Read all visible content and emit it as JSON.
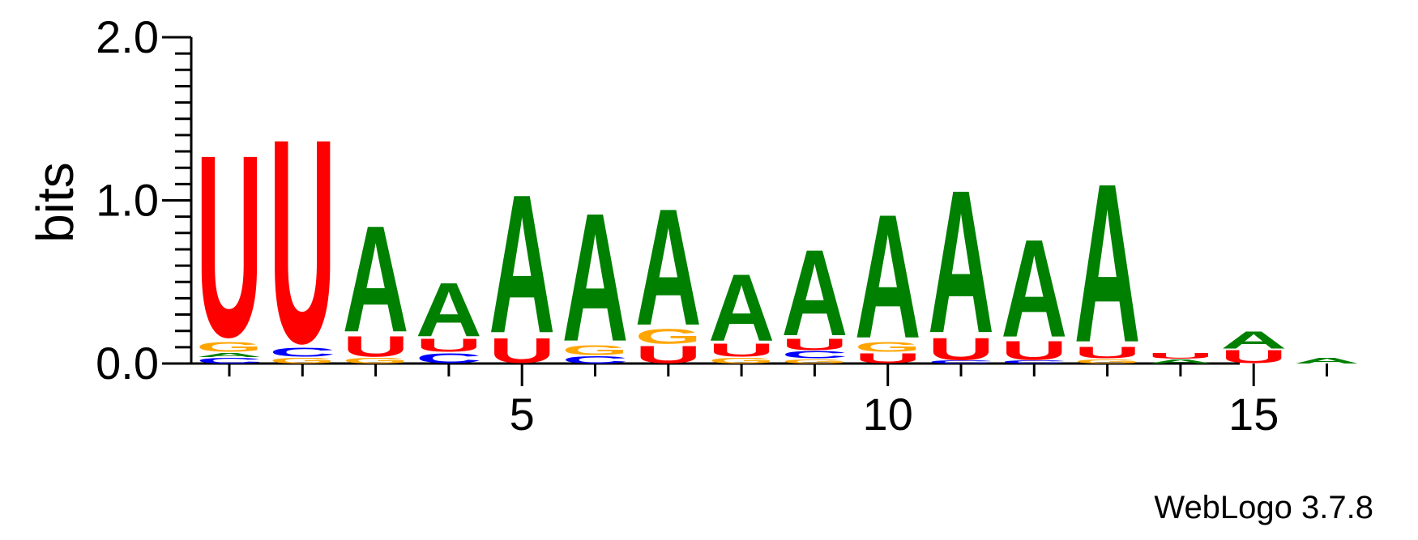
{
  "chart_data": {
    "type": "sequence-logo",
    "ylabel": "bits",
    "ylim": [
      0,
      2
    ],
    "y_ticks": [
      {
        "value": 0,
        "label": "0.0"
      },
      {
        "value": 1,
        "label": "1.0"
      },
      {
        "value": 2,
        "label": "2.0"
      }
    ],
    "x_range": [
      1,
      16
    ],
    "x_ticks": [
      {
        "value": 5,
        "label": "5"
      },
      {
        "value": 10,
        "label": "10"
      },
      {
        "value": 15,
        "label": "15"
      }
    ],
    "colors": {
      "A": "#008000",
      "C": "#0000ff",
      "G": "#ffa500",
      "U": "#ff0000"
    },
    "positions": [
      {
        "pos": 1,
        "stack": [
          [
            "C",
            0.04
          ],
          [
            "A",
            0.03
          ],
          [
            "G",
            0.07
          ],
          [
            "U",
            1.25
          ]
        ]
      },
      {
        "pos": 2,
        "stack": [
          [
            "G",
            0.04
          ],
          [
            "C",
            0.06
          ],
          [
            "U",
            1.4
          ]
        ]
      },
      {
        "pos": 3,
        "stack": [
          [
            "G",
            0.04
          ],
          [
            "U",
            0.14
          ],
          [
            "A",
            0.73
          ]
        ]
      },
      {
        "pos": 4,
        "stack": [
          [
            "C",
            0.07
          ],
          [
            "U",
            0.09
          ],
          [
            "A",
            0.37
          ]
        ]
      },
      {
        "pos": 5,
        "stack": [
          [
            "U",
            0.17
          ],
          [
            "A",
            0.95
          ]
        ]
      },
      {
        "pos": 6,
        "stack": [
          [
            "C",
            0.05
          ],
          [
            "G",
            0.07
          ],
          [
            "A",
            0.88
          ]
        ]
      },
      {
        "pos": 7,
        "stack": [
          [
            "U",
            0.12
          ],
          [
            "G",
            0.1
          ],
          [
            "A",
            0.8
          ]
        ]
      },
      {
        "pos": 8,
        "stack": [
          [
            "G",
            0.04
          ],
          [
            "U",
            0.09
          ],
          [
            "A",
            0.46
          ]
        ]
      },
      {
        "pos": 9,
        "stack": [
          [
            "G",
            0.03
          ],
          [
            "C",
            0.05
          ],
          [
            "U",
            0.08
          ],
          [
            "A",
            0.59
          ]
        ]
      },
      {
        "pos": 10,
        "stack": [
          [
            "U",
            0.07
          ],
          [
            "G",
            0.07
          ],
          [
            "A",
            0.85
          ]
        ]
      },
      {
        "pos": 11,
        "stack": [
          [
            "C",
            0.02
          ],
          [
            "U",
            0.15
          ],
          [
            "A",
            0.98
          ]
        ]
      },
      {
        "pos": 12,
        "stack": [
          [
            "C",
            0.02
          ],
          [
            "U",
            0.13
          ],
          [
            "A",
            0.67
          ]
        ]
      },
      {
        "pos": 13,
        "stack": [
          [
            "G",
            0.03
          ],
          [
            "U",
            0.08
          ],
          [
            "A",
            1.09
          ]
        ]
      },
      {
        "pos": 14,
        "stack": [
          [
            "A",
            0.03
          ],
          [
            "U",
            0.04
          ]
        ]
      },
      {
        "pos": 15,
        "stack": [
          [
            "U",
            0.09
          ],
          [
            "A",
            0.12
          ]
        ]
      },
      {
        "pos": 16,
        "stack": [
          [
            "A",
            0.04
          ]
        ]
      }
    ]
  },
  "footer": {
    "credit": "WebLogo 3.7.8"
  }
}
